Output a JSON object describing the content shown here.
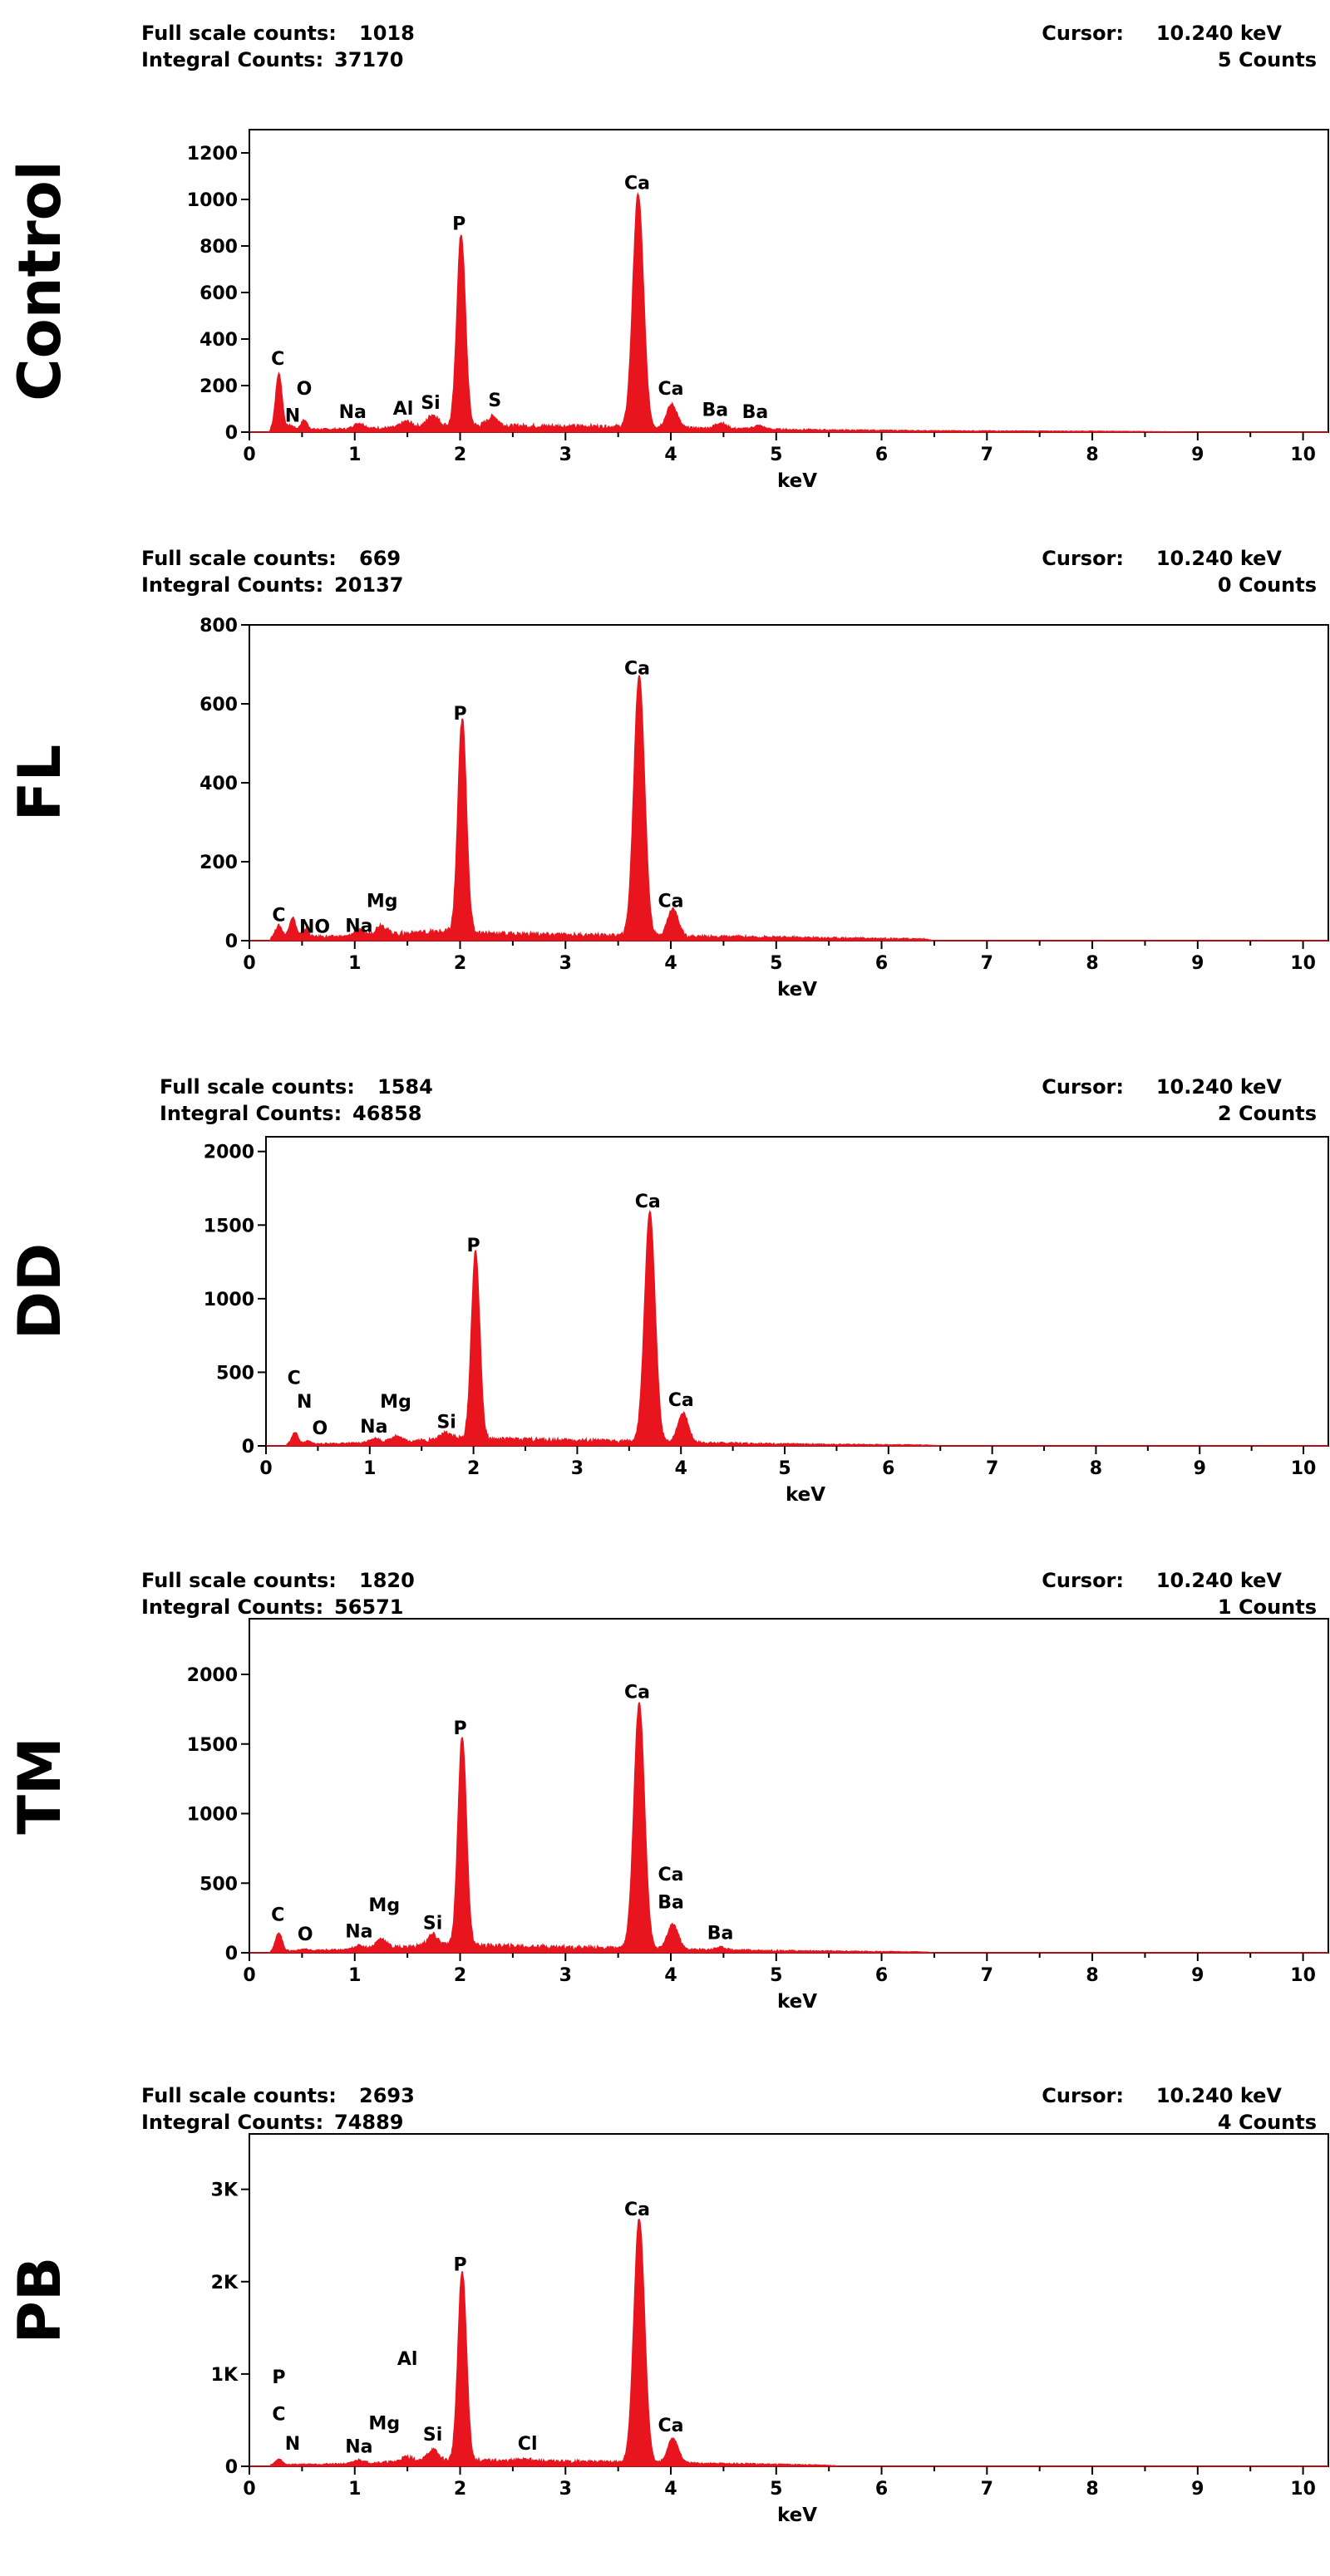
{
  "figure": {
    "chart_data": [
      {
        "type": "area",
        "panel_label": "Control",
        "full_scale_label": "Full scale counts:",
        "full_scale_value": "1018",
        "integral_label": "Integral Counts:",
        "integral_value": "37170",
        "cursor_label": "Cursor:",
        "cursor_value": "10.240 keV",
        "cursor_counts": "5 Counts",
        "xlabel": "keV",
        "xlim": [
          0,
          10.24
        ],
        "ylim": [
          0,
          1300
        ],
        "yticks": [
          0,
          200,
          400,
          600,
          800,
          1000,
          1200
        ],
        "ytick_labels": [
          "0",
          "200",
          "400",
          "600",
          "800",
          "1000",
          "1200"
        ],
        "xticks": [
          0,
          1,
          2,
          3,
          4,
          5,
          6,
          7,
          8,
          9,
          10
        ],
        "xtick_labels": [
          "0",
          "1",
          "2",
          "3",
          "4",
          "5",
          "6",
          "7",
          "8",
          "9",
          "10"
        ],
        "color": "#e8141e",
        "baseline": [
          [
            0.2,
            10
          ],
          [
            1.0,
            12
          ],
          [
            1.5,
            20
          ],
          [
            2.0,
            28
          ],
          [
            2.5,
            25
          ],
          [
            3.0,
            24
          ],
          [
            3.6,
            22
          ],
          [
            4.2,
            16
          ],
          [
            4.8,
            12
          ],
          [
            5.5,
            8
          ],
          [
            6.5,
            5
          ],
          [
            8.2,
            3
          ],
          [
            9.0,
            0
          ]
        ],
        "peaks": [
          {
            "x": 0.28,
            "y": 240,
            "w": 0.03
          },
          {
            "x": 0.39,
            "y": 18,
            "w": 0.03
          },
          {
            "x": 0.52,
            "y": 40,
            "w": 0.03
          },
          {
            "x": 1.04,
            "y": 25,
            "w": 0.05
          },
          {
            "x": 1.49,
            "y": 25,
            "w": 0.05
          },
          {
            "x": 1.74,
            "y": 50,
            "w": 0.05
          },
          {
            "x": 2.01,
            "y": 820,
            "w": 0.04
          },
          {
            "x": 2.31,
            "y": 40,
            "w": 0.05
          },
          {
            "x": 3.69,
            "y": 1000,
            "w": 0.05
          },
          {
            "x": 4.01,
            "y": 100,
            "w": 0.05
          },
          {
            "x": 4.47,
            "y": 25,
            "w": 0.05
          },
          {
            "x": 4.83,
            "y": 15,
            "w": 0.05
          }
        ],
        "peak_labels": [
          {
            "text": "C",
            "x": 0.27,
            "y": 290
          },
          {
            "text": "N",
            "x": 0.41,
            "y": 45
          },
          {
            "text": "O",
            "x": 0.52,
            "y": 160
          },
          {
            "text": "Na",
            "x": 0.98,
            "y": 60
          },
          {
            "text": "Al",
            "x": 1.46,
            "y": 75
          },
          {
            "text": "Si",
            "x": 1.72,
            "y": 100
          },
          {
            "text": "P",
            "x": 1.99,
            "y": 870
          },
          {
            "text": "S",
            "x": 2.33,
            "y": 110
          },
          {
            "text": "Ca",
            "x": 3.68,
            "y": 1045
          },
          {
            "text": "Ca",
            "x": 4.0,
            "y": 160
          },
          {
            "text": "Ba",
            "x": 4.42,
            "y": 70
          },
          {
            "text": "Ba",
            "x": 4.8,
            "y": 60
          }
        ]
      },
      {
        "type": "area",
        "panel_label": "FL",
        "full_scale_label": "Full scale counts:",
        "full_scale_value": "669",
        "integral_label": "Integral Counts:",
        "integral_value": "20137",
        "cursor_label": "Cursor:",
        "cursor_value": "10.240 keV",
        "cursor_counts": "0 Counts",
        "xlabel": "keV",
        "xlim": [
          0,
          10.24
        ],
        "ylim": [
          0,
          800
        ],
        "yticks": [
          0,
          200,
          400,
          600,
          800
        ],
        "ytick_labels": [
          "0",
          "200",
          "400",
          "600",
          "800"
        ],
        "xticks": [
          0,
          1,
          2,
          3,
          4,
          5,
          6,
          7,
          8,
          9,
          10
        ],
        "xtick_labels": [
          "0",
          "1",
          "2",
          "3",
          "4",
          "5",
          "6",
          "7",
          "8",
          "9",
          "10"
        ],
        "color": "#e8141e",
        "baseline": [
          [
            0.2,
            8
          ],
          [
            1.0,
            10
          ],
          [
            1.5,
            18
          ],
          [
            1.85,
            22
          ],
          [
            2.5,
            16
          ],
          [
            3.0,
            14
          ],
          [
            3.6,
            12
          ],
          [
            4.2,
            10
          ],
          [
            5.0,
            8
          ],
          [
            6.4,
            4
          ],
          [
            6.5,
            0
          ]
        ],
        "peaks": [
          {
            "x": 0.28,
            "y": 30,
            "w": 0.03
          },
          {
            "x": 0.41,
            "y": 50,
            "w": 0.03
          },
          {
            "x": 0.53,
            "y": 20,
            "w": 0.03
          },
          {
            "x": 1.04,
            "y": 15,
            "w": 0.05
          },
          {
            "x": 1.25,
            "y": 25,
            "w": 0.05
          },
          {
            "x": 2.02,
            "y": 540,
            "w": 0.04
          },
          {
            "x": 3.7,
            "y": 660,
            "w": 0.05
          },
          {
            "x": 4.02,
            "y": 70,
            "w": 0.05
          }
        ],
        "peak_labels": [
          {
            "text": "C",
            "x": 0.28,
            "y": 50
          },
          {
            "text": "NO",
            "x": 0.62,
            "y": 20
          },
          {
            "text": "Na",
            "x": 1.04,
            "y": 22
          },
          {
            "text": "Mg",
            "x": 1.26,
            "y": 85
          },
          {
            "text": "P",
            "x": 2.0,
            "y": 560
          },
          {
            "text": "Ca",
            "x": 3.68,
            "y": 675
          },
          {
            "text": "Ca",
            "x": 4.0,
            "y": 85
          }
        ]
      },
      {
        "type": "area",
        "panel_label": "DD",
        "full_scale_label": "Full scale counts:",
        "full_scale_value": "1584",
        "integral_label": "Integral Counts:",
        "integral_value": "46858",
        "cursor_label": "Cursor:",
        "cursor_value": "10.240 keV",
        "cursor_counts": "2 Counts",
        "xlabel": "keV",
        "xlim": [
          0,
          10.24
        ],
        "ylim": [
          0,
          2100
        ],
        "yticks": [
          0,
          500,
          1000,
          1500,
          2000
        ],
        "ytick_labels": [
          "0",
          "500",
          "1000",
          "1500",
          "2000"
        ],
        "xticks": [
          0,
          1,
          2,
          3,
          4,
          5,
          6,
          7,
          8,
          9,
          10
        ],
        "xtick_labels": [
          "0",
          "1",
          "2",
          "3",
          "4",
          "5",
          "6",
          "7",
          "8",
          "9",
          "10"
        ],
        "color": "#e8141e",
        "baseline": [
          [
            0.2,
            10
          ],
          [
            1.0,
            18
          ],
          [
            1.5,
            35
          ],
          [
            1.85,
            45
          ],
          [
            2.5,
            40
          ],
          [
            3.0,
            35
          ],
          [
            3.6,
            28
          ],
          [
            4.2,
            20
          ],
          [
            5.0,
            12
          ],
          [
            6.4,
            5
          ],
          [
            6.5,
            0
          ]
        ],
        "peaks": [
          {
            "x": 0.28,
            "y": 80,
            "w": 0.03
          },
          {
            "x": 0.4,
            "y": 20,
            "w": 0.03
          },
          {
            "x": 1.04,
            "y": 30,
            "w": 0.05
          },
          {
            "x": 1.25,
            "y": 40,
            "w": 0.05
          },
          {
            "x": 1.74,
            "y": 50,
            "w": 0.05
          },
          {
            "x": 2.02,
            "y": 1270,
            "w": 0.04
          },
          {
            "x": 3.7,
            "y": 1560,
            "w": 0.05
          },
          {
            "x": 4.02,
            "y": 200,
            "w": 0.05
          }
        ],
        "peak_labels": [
          {
            "text": "C",
            "x": 0.27,
            "y": 420
          },
          {
            "text": "N",
            "x": 0.37,
            "y": 260
          },
          {
            "text": "O",
            "x": 0.52,
            "y": 80
          },
          {
            "text": "Na",
            "x": 1.04,
            "y": 90
          },
          {
            "text": "Mg",
            "x": 1.25,
            "y": 260
          },
          {
            "text": "Si",
            "x": 1.74,
            "y": 120
          },
          {
            "text": "P",
            "x": 2.0,
            "y": 1320
          },
          {
            "text": "Ca",
            "x": 3.68,
            "y": 1620
          },
          {
            "text": "Ca",
            "x": 4.0,
            "y": 270
          }
        ]
      },
      {
        "type": "area",
        "panel_label": "TM",
        "full_scale_label": "Full scale counts:",
        "full_scale_value": "1820",
        "integral_label": "Integral Counts:",
        "integral_value": "56571",
        "cursor_label": "Cursor:",
        "cursor_value": "10.240 keV",
        "cursor_counts": "1 Counts",
        "xlabel": "keV",
        "xlim": [
          0,
          10.24
        ],
        "ylim": [
          0,
          2400
        ],
        "yticks": [
          0,
          500,
          1000,
          1500,
          2000
        ],
        "ytick_labels": [
          "0",
          "500",
          "1000",
          "1500",
          "2000"
        ],
        "xticks": [
          0,
          1,
          2,
          3,
          4,
          5,
          6,
          7,
          8,
          9,
          10
        ],
        "xtick_labels": [
          "0",
          "1",
          "2",
          "3",
          "4",
          "5",
          "6",
          "7",
          "8",
          "9",
          "10"
        ],
        "color": "#e8141e",
        "baseline": [
          [
            0.2,
            12
          ],
          [
            1.0,
            20
          ],
          [
            1.5,
            40
          ],
          [
            1.85,
            50
          ],
          [
            2.5,
            45
          ],
          [
            3.0,
            38
          ],
          [
            3.6,
            30
          ],
          [
            4.2,
            22
          ],
          [
            5.0,
            14
          ],
          [
            6.4,
            5
          ],
          [
            6.5,
            0
          ]
        ],
        "peaks": [
          {
            "x": 0.28,
            "y": 130,
            "w": 0.03
          },
          {
            "x": 0.52,
            "y": 10,
            "w": 0.03
          },
          {
            "x": 1.04,
            "y": 30,
            "w": 0.05
          },
          {
            "x": 1.25,
            "y": 70,
            "w": 0.05
          },
          {
            "x": 1.74,
            "y": 80,
            "w": 0.05
          },
          {
            "x": 2.02,
            "y": 1500,
            "w": 0.04
          },
          {
            "x": 3.7,
            "y": 1760,
            "w": 0.05
          },
          {
            "x": 4.02,
            "y": 180,
            "w": 0.05
          },
          {
            "x": 4.47,
            "y": 20,
            "w": 0.05
          }
        ],
        "peak_labels": [
          {
            "text": "C",
            "x": 0.27,
            "y": 230
          },
          {
            "text": "O",
            "x": 0.53,
            "y": 90
          },
          {
            "text": "Na",
            "x": 1.04,
            "y": 110
          },
          {
            "text": "Mg",
            "x": 1.28,
            "y": 300
          },
          {
            "text": "Si",
            "x": 1.74,
            "y": 170
          },
          {
            "text": "P",
            "x": 2.0,
            "y": 1570
          },
          {
            "text": "Ca",
            "x": 3.68,
            "y": 1830
          },
          {
            "text": "Ca",
            "x": 4.0,
            "y": 520
          },
          {
            "text": "Ba",
            "x": 4.0,
            "y": 320
          },
          {
            "text": "Ba",
            "x": 4.47,
            "y": 100
          }
        ]
      },
      {
        "type": "area",
        "panel_label": "PB",
        "full_scale_label": "Full scale counts:",
        "full_scale_value": "2693",
        "integral_label": "Integral Counts:",
        "integral_value": "74889",
        "cursor_label": "Cursor:",
        "cursor_value": "10.240 keV",
        "cursor_counts": "4 Counts",
        "xlabel": "keV",
        "xlim": [
          0,
          10.24
        ],
        "ylim": [
          0,
          3600
        ],
        "yticks": [
          0,
          1000,
          2000,
          3000
        ],
        "ytick_labels": [
          "0",
          "1K",
          "2K",
          "3K"
        ],
        "xticks": [
          0,
          1,
          2,
          3,
          4,
          5,
          6,
          7,
          8,
          9,
          10
        ],
        "xtick_labels": [
          "0",
          "1",
          "2",
          "3",
          "4",
          "5",
          "6",
          "7",
          "8",
          "9",
          "10"
        ],
        "color": "#e8141e",
        "baseline": [
          [
            0.2,
            15
          ],
          [
            1.0,
            25
          ],
          [
            1.5,
            50
          ],
          [
            1.85,
            60
          ],
          [
            2.5,
            55
          ],
          [
            3.0,
            48
          ],
          [
            3.6,
            40
          ],
          [
            4.2,
            30
          ],
          [
            5.0,
            20
          ],
          [
            5.5,
            10
          ],
          [
            5.6,
            0
          ]
        ],
        "peaks": [
          {
            "x": 0.28,
            "y": 60,
            "w": 0.03
          },
          {
            "x": 1.04,
            "y": 40,
            "w": 0.05
          },
          {
            "x": 1.49,
            "y": 50,
            "w": 0.05
          },
          {
            "x": 1.74,
            "y": 120,
            "w": 0.05
          },
          {
            "x": 2.02,
            "y": 2050,
            "w": 0.04
          },
          {
            "x": 2.62,
            "y": 30,
            "w": 0.05
          },
          {
            "x": 3.7,
            "y": 2640,
            "w": 0.05
          },
          {
            "x": 4.02,
            "y": 270,
            "w": 0.05
          }
        ],
        "peak_labels": [
          {
            "text": "P",
            "x": 0.28,
            "y": 900
          },
          {
            "text": "C",
            "x": 0.28,
            "y": 500
          },
          {
            "text": "N",
            "x": 0.41,
            "y": 180
          },
          {
            "text": "Na",
            "x": 1.04,
            "y": 150
          },
          {
            "text": "Mg",
            "x": 1.28,
            "y": 400
          },
          {
            "text": "Al",
            "x": 1.5,
            "y": 1100
          },
          {
            "text": "Si",
            "x": 1.74,
            "y": 280
          },
          {
            "text": "P",
            "x": 2.0,
            "y": 2120
          },
          {
            "text": "Cl",
            "x": 2.64,
            "y": 180
          },
          {
            "text": "Ca",
            "x": 3.68,
            "y": 2720
          },
          {
            "text": "Ca",
            "x": 4.0,
            "y": 380
          }
        ]
      }
    ]
  }
}
